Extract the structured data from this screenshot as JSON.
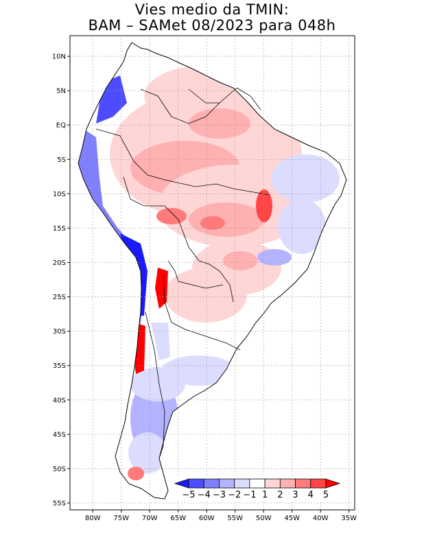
{
  "title": {
    "line1": "Vies medio da TMIN:",
    "line2": "BAM – SAMet 08/2023  para 048h"
  },
  "map": {
    "region": "South America",
    "lon_range": [
      -84,
      -34
    ],
    "lat_range": [
      -56,
      13
    ],
    "lat_ticks": [
      {
        "value": 10,
        "label": "10N"
      },
      {
        "value": 5,
        "label": "5N"
      },
      {
        "value": 0,
        "label": "EQ"
      },
      {
        "value": -5,
        "label": "5S"
      },
      {
        "value": -10,
        "label": "10S"
      },
      {
        "value": -15,
        "label": "15S"
      },
      {
        "value": -20,
        "label": "20S"
      },
      {
        "value": -25,
        "label": "25S"
      },
      {
        "value": -30,
        "label": "30S"
      },
      {
        "value": -35,
        "label": "35S"
      },
      {
        "value": -40,
        "label": "40S"
      },
      {
        "value": -45,
        "label": "45S"
      },
      {
        "value": -50,
        "label": "50S"
      },
      {
        "value": -55,
        "label": "55S"
      }
    ],
    "lon_ticks": [
      {
        "value": -80,
        "label": "80W"
      },
      {
        "value": -75,
        "label": "75W"
      },
      {
        "value": -70,
        "label": "70W"
      },
      {
        "value": -65,
        "label": "65W"
      },
      {
        "value": -60,
        "label": "60W"
      },
      {
        "value": -55,
        "label": "55W"
      },
      {
        "value": -50,
        "label": "50W"
      },
      {
        "value": -45,
        "label": "45W"
      },
      {
        "value": -40,
        "label": "40W"
      },
      {
        "value": -35,
        "label": "35W"
      }
    ]
  },
  "colorbar": {
    "labels": [
      "−5",
      "−4",
      "−3",
      "−2",
      "−1",
      "1",
      "2",
      "3",
      "4",
      "5"
    ],
    "colors": [
      "#1a1aff",
      "#4d4dff",
      "#8080ff",
      "#b3b3ff",
      "#dcdcff",
      "#ffffff",
      "#ffd6d6",
      "#ffb0b0",
      "#ff7a7a",
      "#ff4545",
      "#ff0000"
    ]
  },
  "colors": {
    "land_neutral": "#ffffff",
    "frame": "#000000",
    "grid": "#9a9a9a"
  }
}
